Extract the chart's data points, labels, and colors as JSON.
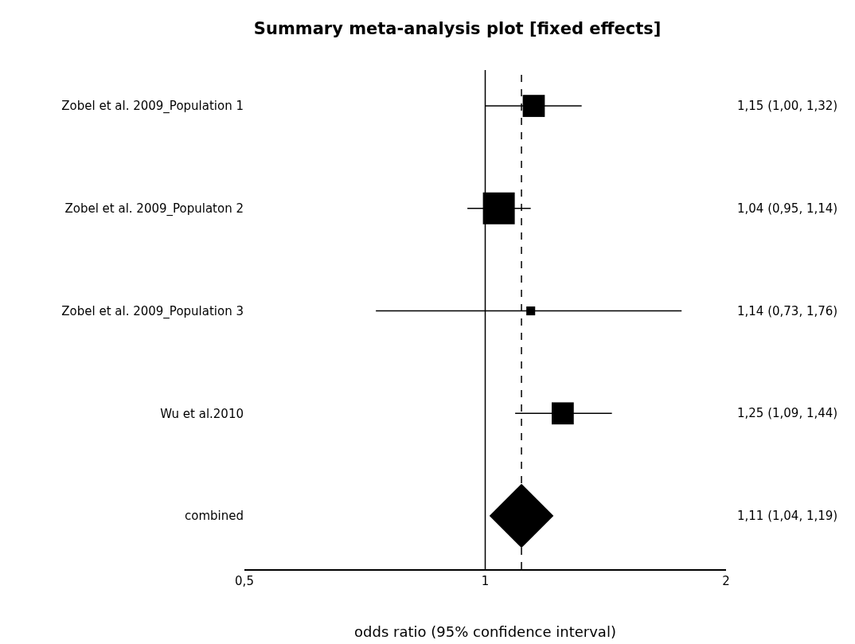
{
  "chart_data": {
    "type": "scatter",
    "title": "Summary meta-analysis plot [fixed effects]",
    "xlabel": "odds ratio (95% confidence interval)",
    "orientation": "horizontal",
    "categories": [
      "Zobel et al. 2009_Population 1",
      "Zobel et al. 2009_Populaton 2",
      "Zobel et al. 2009_Population 3",
      "Wu et al.2010",
      "combined"
    ],
    "series": [
      {
        "type": "bubble",
        "marker": "square",
        "color": "#000000",
        "values": [
          1.15,
          1.04,
          1.14,
          1.25,
          null
        ],
        "sizes": [
          0.48,
          1,
          0.077,
          0.48,
          null
        ],
        "errors": [
          [
            1.0,
            1.32
          ],
          [
            0.95,
            1.14
          ],
          [
            0.73,
            1.76
          ],
          [
            1.09,
            1.44
          ],
          null
        ]
      },
      {
        "marker": "diamond",
        "color": "#000000",
        "values": [
          null,
          null,
          null,
          null,
          1.11
        ]
      }
    ],
    "value_labels": [
      "1,15 (1,00, 1,32)",
      "1,04 (0,95, 1,14)",
      "1,14 (0,73, 1,76)",
      "1,25 (1,09, 1,44)",
      "1,11 (1,04, 1,19)"
    ],
    "log": "x",
    "xlim": [
      0.5,
      2
    ],
    "xticks": [
      {
        "value": 0.5,
        "label": "0,5"
      },
      1,
      2
    ],
    "ref_lines": [
      {
        "axis": "x",
        "value": 1,
        "color": "#000000",
        "line_style": "solid"
      },
      {
        "axis": "x",
        "value": 1.11,
        "color": "#000000",
        "line_style": "dashed"
      }
    ],
    "grid": false
  }
}
